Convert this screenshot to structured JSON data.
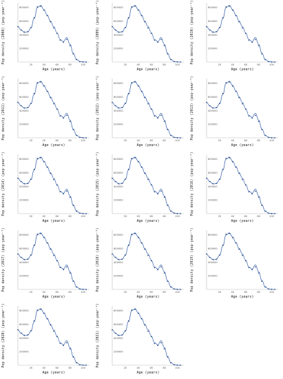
{
  "colors": {
    "curve": "#4a6fb0",
    "points": "#2d4f8a",
    "axis": "#bbbbbb",
    "text": "#222222"
  },
  "axis_text": {
    "xlabel": "Age (years)",
    "ylabel_prefix": "Pop density (",
    "ylabel_suffix": ") (pop·year⁻¹)"
  },
  "chart_data": {
    "type": "line",
    "layout": "small-multiples 3 columns × 5 rows",
    "panels": [
      "2008",
      "2009",
      "2010",
      "2011",
      "2012",
      "2013",
      "2014",
      "2015",
      "2016",
      "2017",
      "2018",
      "2019",
      "2020",
      "2021"
    ],
    "x_ticks": [
      20,
      40,
      60,
      80,
      100
    ],
    "y_ticks": [
      200000,
      400000,
      600000,
      800000
    ],
    "xlim": [
      0,
      110
    ],
    "ylim": [
      0,
      870000
    ],
    "series": [
      {
        "kind": "model-curve",
        "x": [
          0,
          5,
          10,
          15,
          20,
          25,
          30,
          35,
          40,
          45,
          50,
          55,
          60,
          65,
          70,
          75,
          80,
          85,
          90,
          95,
          100,
          105
        ],
        "values": [
          520000,
          470000,
          435000,
          440000,
          500000,
          640000,
          800000,
          830000,
          770000,
          690000,
          600000,
          520000,
          430000,
          330000,
          300000,
          360000,
          260000,
          130000,
          40000,
          8000,
          1000,
          0
        ]
      },
      {
        "kind": "observed-points",
        "x": [
          0,
          5,
          10,
          15,
          20,
          25,
          30,
          35,
          40,
          45,
          50,
          55,
          60,
          65,
          70,
          75,
          80,
          85,
          90,
          95,
          100,
          105
        ],
        "values": [
          520000,
          470000,
          440000,
          445000,
          505000,
          650000,
          810000,
          820000,
          760000,
          680000,
          590000,
          500000,
          420000,
          320000,
          290000,
          330000,
          240000,
          120000,
          35000,
          6000,
          800,
          0
        ]
      }
    ]
  }
}
